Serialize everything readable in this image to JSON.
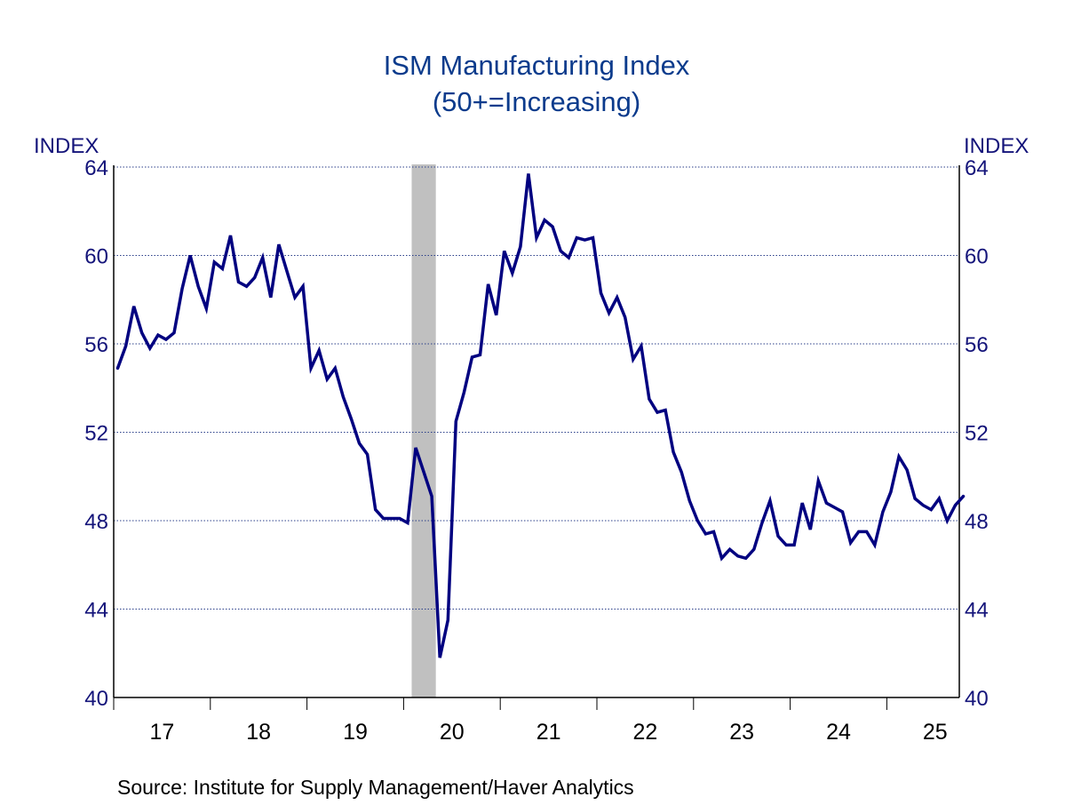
{
  "chart_data": {
    "type": "line",
    "title": "ISM Manufacturing Index",
    "subtitle": "(50+=Increasing)",
    "ylabel_left": "INDEX",
    "ylabel_right": "INDEX",
    "xlabel": "",
    "ylim": [
      40,
      64
    ],
    "yticks": [
      40,
      44,
      48,
      52,
      56,
      60,
      64
    ],
    "ytick_labels": [
      "40",
      "44",
      "48",
      "52",
      "56",
      "60",
      "64"
    ],
    "x_start": "2017-01",
    "x_frequency": "monthly",
    "xlim_years": [
      2017,
      2025.75
    ],
    "xtick_labels": [
      "17",
      "18",
      "19",
      "20",
      "21",
      "22",
      "23",
      "24",
      "25"
    ],
    "grid": true,
    "grid_style": "dotted horizontal",
    "line_color": "#000080",
    "recession_shading": [
      {
        "start": "2020-02",
        "end": "2020-04",
        "color": "#c0c0c0"
      }
    ],
    "series": [
      {
        "name": "ISM Manufacturing Index",
        "values": [
          54.9,
          55.9,
          57.7,
          56.5,
          55.8,
          56.4,
          56.2,
          56.5,
          58.5,
          60.0,
          58.6,
          57.6,
          59.7,
          59.4,
          60.9,
          58.8,
          58.6,
          59.0,
          59.9,
          58.1,
          60.5,
          59.3,
          58.1,
          58.6,
          54.9,
          55.7,
          54.4,
          54.9,
          53.6,
          52.6,
          51.5,
          51.0,
          48.5,
          48.1,
          48.1,
          48.1,
          47.9,
          51.3,
          50.2,
          49.1,
          41.8,
          43.5,
          52.5,
          53.8,
          55.4,
          55.5,
          58.7,
          57.3,
          60.2,
          59.2,
          60.4,
          63.7,
          60.8,
          61.6,
          61.3,
          60.2,
          59.9,
          60.8,
          60.7,
          60.8,
          58.3,
          57.4,
          58.1,
          57.2,
          55.3,
          55.9,
          53.5,
          52.9,
          53.0,
          51.1,
          50.2,
          48.9,
          48.0,
          47.4,
          47.5,
          46.3,
          46.7,
          46.4,
          46.3,
          46.7,
          47.9,
          48.9,
          47.3,
          46.9,
          46.9,
          48.8,
          47.6,
          49.8,
          48.8,
          48.6,
          48.4,
          47.0,
          47.5,
          47.5,
          46.9,
          48.4,
          49.3,
          50.9,
          50.3,
          49.0,
          48.7,
          48.5,
          49.0,
          48.0,
          48.7,
          49.1
        ]
      }
    ],
    "source": "Source:  Institute for Supply Management/Haver Analytics"
  }
}
